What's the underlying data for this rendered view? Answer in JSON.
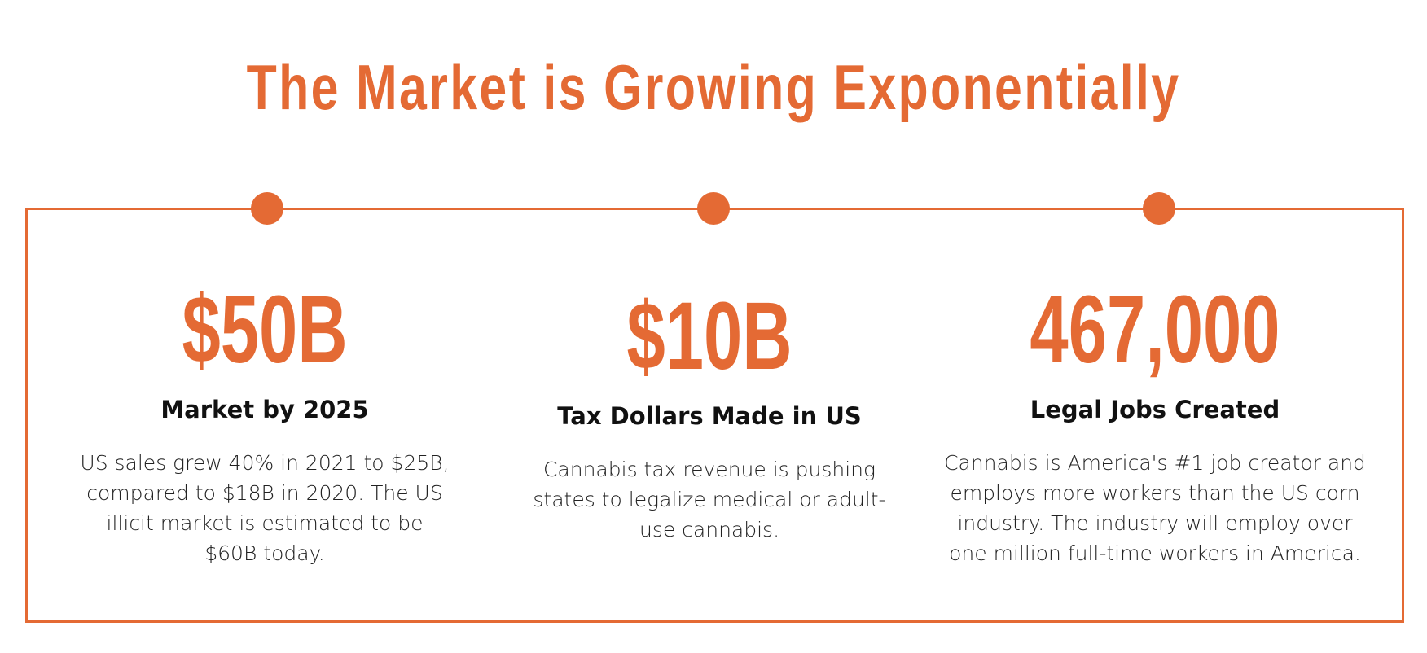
{
  "header": {
    "title": "The Market is Growing Exponentially"
  },
  "stats": [
    {
      "value": "$50B",
      "label": "Market by 2025",
      "description": "US sales grew 40% in 2021 to $25B, compared to $18B in 2020. The US illicit market is estimated to be $60B today."
    },
    {
      "value": "$10B",
      "label": "Tax Dollars Made in US",
      "description": "Cannabis tax revenue is pushing states to legalize medical or adult-use cannabis."
    },
    {
      "value": "467,000",
      "label": "Legal Jobs Created",
      "description": "Cannabis is America's #1 job creator and employs more workers than the US corn industry. The industry will employ over one million full-time workers in America."
    }
  ]
}
